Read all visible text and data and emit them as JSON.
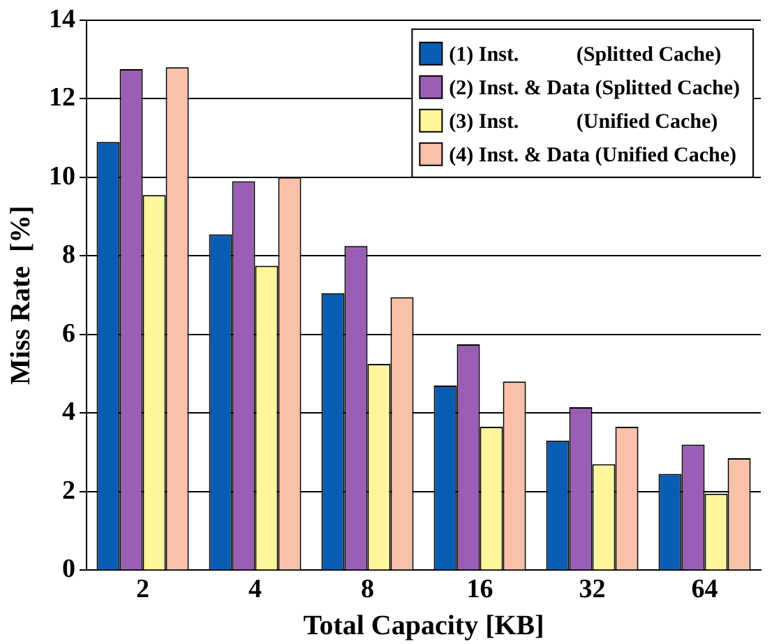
{
  "chart_data": {
    "type": "bar",
    "xlabel": "Total Capacity [KB]",
    "ylabel": "Miss Rate  [%]",
    "categories": [
      "2",
      "4",
      "8",
      "16",
      "32",
      "64"
    ],
    "series": [
      {
        "name": "(1) Inst.           (Splitted Cache)",
        "color": "#0b5db3",
        "values": [
          10.9,
          8.55,
          7.05,
          4.7,
          3.3,
          2.45
        ]
      },
      {
        "name": "(2) Inst. & Data (Splitted Cache)",
        "color": "#9a5fb4",
        "values": [
          12.75,
          9.9,
          8.25,
          5.75,
          4.15,
          3.2
        ]
      },
      {
        "name": "(3) Inst.           (Unified Cache)",
        "color": "#fff59a",
        "values": [
          9.55,
          7.75,
          5.25,
          3.65,
          2.7,
          1.95
        ]
      },
      {
        "name": "(4) Inst. & Data (Unified Cache)",
        "color": "#f9c1a8",
        "values": [
          12.8,
          10.0,
          6.95,
          4.8,
          3.65,
          2.85
        ]
      }
    ],
    "ylim": [
      0,
      14
    ],
    "yticks": [
      0,
      2,
      4,
      6,
      8,
      10,
      12,
      14
    ],
    "grid": "y",
    "legend": "top right"
  }
}
